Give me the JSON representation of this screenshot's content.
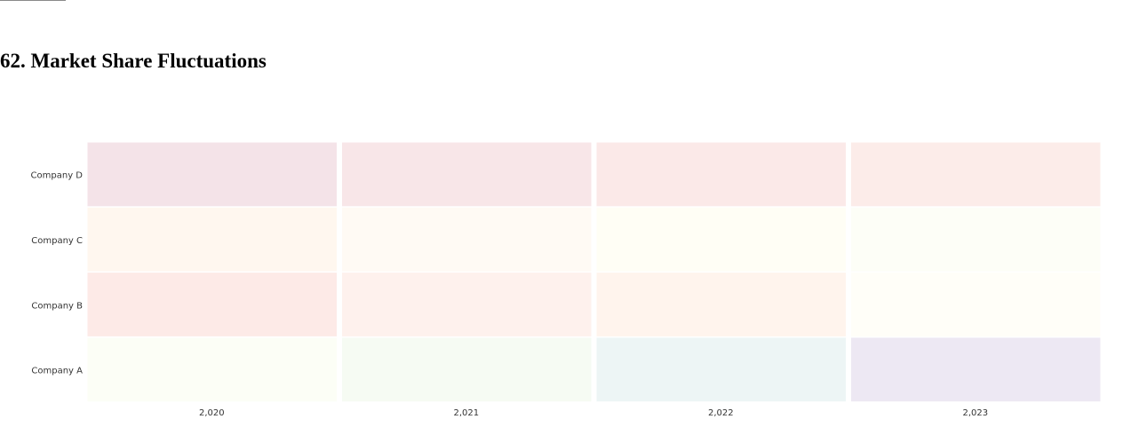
{
  "page": {
    "title": "62. Market Share Fluctuations"
  },
  "chart_data": {
    "type": "heatmap",
    "title": "",
    "xlabel": "",
    "ylabel": "",
    "x": [
      "2,020",
      "2,021",
      "2,022",
      "2,023"
    ],
    "y": [
      "Company D",
      "Company C",
      "Company B",
      "Company A"
    ],
    "cell_colors": [
      [
        "#f4e3e8",
        "#f8e6e8",
        "#fbe9e8",
        "#fcece9"
      ],
      [
        "#fff7ef",
        "#fffaf4",
        "#fffef5",
        "#fdfef7"
      ],
      [
        "#fdeae7",
        "#fef1ed",
        "#fff4ed",
        "#fffef8"
      ],
      [
        "#fcfef6",
        "#f6fbf3",
        "#edf5f5",
        "#ede8f3"
      ]
    ],
    "legend": "none",
    "grid": false
  }
}
